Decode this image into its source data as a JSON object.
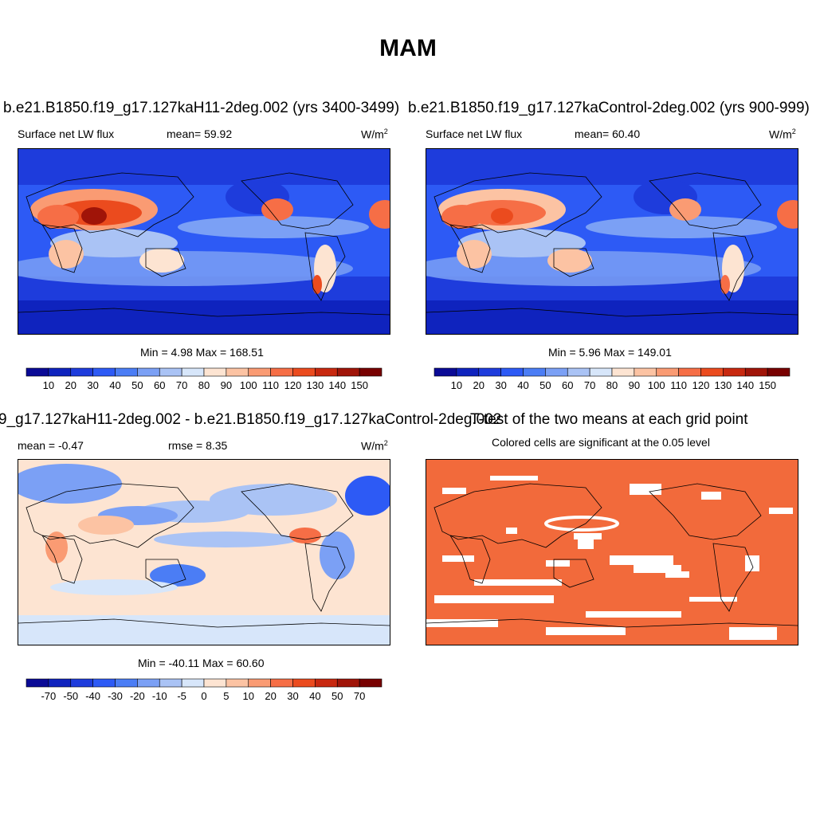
{
  "figure_title": "MAM",
  "panels": [
    {
      "title": "b.e21.B1850.f19_g17.127kaH11-2deg.002 (yrs 3400-3499)",
      "left_label": "Surface net LW flux",
      "stat": "mean=  59.92",
      "units": "W/m",
      "units_sup": "2",
      "minmax": "Min =   4.98 Max = 168.51"
    },
    {
      "title": "b.e21.B1850.f19_g17.127kaControl-2deg.002 (yrs 900-999)",
      "left_label": "Surface net LW flux",
      "stat": "mean=  60.40",
      "units": "W/m",
      "units_sup": "2",
      "minmax": "Min =   5.96 Max = 149.01"
    },
    {
      "title": "9_g17.127kaH11-2deg.002 - b.e21.B1850.f19_g17.127kaControl-2deg.002",
      "left_label": "mean =  -0.47",
      "stat": "rmse =   8.35",
      "units": "W/m",
      "units_sup": "2",
      "minmax": "Min = -40.11 Max =  60.60"
    },
    {
      "title": "T-test of the two means at each grid point",
      "subtitle": "Colored cells are significant at the 0.05 level"
    }
  ],
  "chart_data": [
    {
      "type": "heatmap",
      "title": "b.e21.B1850.f19_g17.127kaH11-2deg.002 (yrs 3400-3499)",
      "variable": "Surface net LW flux",
      "units": "W/m2",
      "mean": 59.92,
      "min": 4.98,
      "max": 168.51,
      "colorbar": {
        "levels": [
          "10",
          "20",
          "30",
          "40",
          "50",
          "60",
          "70",
          "80",
          "90",
          "100",
          "110",
          "120",
          "130",
          "140",
          "150"
        ],
        "colors": [
          "#0a0a96",
          "#0f23be",
          "#1e3cdc",
          "#2d5af5",
          "#4b7df5",
          "#7ba0f5",
          "#aac3f5",
          "#d7e6fa",
          "#fde4d2",
          "#fcc3a3",
          "#fa9b73",
          "#f66e46",
          "#eb4b1e",
          "#c8280f",
          "#a01408",
          "#780000"
        ]
      }
    },
    {
      "type": "heatmap",
      "title": "b.e21.B1850.f19_g17.127kaControl-2deg.002 (yrs 900-999)",
      "variable": "Surface net LW flux",
      "units": "W/m2",
      "mean": 60.4,
      "min": 5.96,
      "max": 149.01,
      "colorbar": {
        "levels": [
          "10",
          "20",
          "30",
          "40",
          "50",
          "60",
          "70",
          "80",
          "90",
          "100",
          "110",
          "120",
          "130",
          "140",
          "150"
        ],
        "colors": [
          "#0a0a96",
          "#0f23be",
          "#1e3cdc",
          "#2d5af5",
          "#4b7df5",
          "#7ba0f5",
          "#aac3f5",
          "#d7e6fa",
          "#fde4d2",
          "#fcc3a3",
          "#fa9b73",
          "#f66e46",
          "#eb4b1e",
          "#c8280f",
          "#a01408",
          "#780000"
        ]
      }
    },
    {
      "type": "heatmap",
      "title": "9_g17.127kaH11-2deg.002 - b.e21.B1850.f19_g17.127kaControl-2deg.002",
      "units": "W/m2",
      "mean": -0.47,
      "rmse": 8.35,
      "min": -40.11,
      "max": 60.6,
      "colorbar": {
        "levels": [
          "-70",
          "-50",
          "-40",
          "-30",
          "-20",
          "-10",
          "-5",
          "0",
          "5",
          "10",
          "20",
          "30",
          "40",
          "50",
          "70"
        ],
        "colors": [
          "#0a0a96",
          "#0f23be",
          "#1e3cdc",
          "#2d5af5",
          "#4b7df5",
          "#7ba0f5",
          "#aac3f5",
          "#d7e6fa",
          "#fde4d2",
          "#fcc3a3",
          "#fa9b73",
          "#f66e46",
          "#eb4b1e",
          "#c8280f",
          "#a01408",
          "#780000"
        ]
      }
    },
    {
      "type": "heatmap",
      "title": "T-test of the two means at each grid point",
      "subtitle": "Colored cells are significant at the 0.05 level",
      "significant_color": "#f26a3b"
    }
  ]
}
